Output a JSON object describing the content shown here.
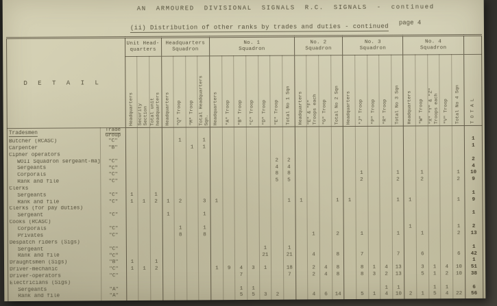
{
  "page": {
    "background": "#35332e",
    "paper_color": "#cdc9ac",
    "ink_color": "#55503c"
  },
  "title": "AN  ARMOURED  DIVISIONAL  SIGNALS  R.C. SIGNALS - continued",
  "subtitle": "(ii) Distribution of other ranks by trades and duties - continued",
  "page_number": "page 4",
  "detail_header": "D E T A I L",
  "body_headers": {
    "tradesmen": "Tradesmen",
    "trade_group": "Trade Group"
  },
  "total_column_label": "T O T A L",
  "groups": [
    {
      "label": "Unit Head-\nquarters",
      "cols": [
        "Headquarters",
        "Security\nSection",
        "Total unit\nheadquarters"
      ]
    },
    {
      "label": "Headquarters\nSquadron",
      "cols": [
        "Headquarters",
        "\"Q\" Troop",
        "\"M\" Troop",
        "Total Headquarters\nSqn."
      ]
    },
    {
      "label": "No. 1\nSquadron",
      "cols": [
        "Headquarters",
        "\"A\" Troop",
        "\"B\" Troop",
        "\"C\" Troop",
        "\"D\" Troop",
        "\"E\" Troop",
        "Total No 1 Sqn"
      ]
    },
    {
      "label": "No. 2\nSquadron",
      "cols": [
        "Headquarters",
        "\"E\" & \"F\"\nTroops each",
        "\"G\" Troop",
        "Total No 2 Sqn"
      ]
    },
    {
      "label": "No. 3\nSquadron",
      "cols": [
        "Headquarters",
        "\"J\" Troop",
        "\"P\" Troop",
        "\"R\" Troop",
        "Total No 3 Sqn"
      ]
    },
    {
      "label": "No. 4\nSquadron",
      "cols": [
        "Headquarters",
        "\"W\" Troop",
        "\"X\" \"Y\" & \"Z\"\nTroops each",
        "\"V\" Troop",
        "Total No 4 Sqn"
      ]
    }
  ],
  "rows": [
    {
      "label": "Tradesmen",
      "indent": 0,
      "section": true,
      "trade_header": true,
      "trade": "",
      "cells": {}
    },
    {
      "label": "Butcher (RCASC)",
      "indent": 0,
      "trade": "\"C\"",
      "cells": {
        "5": "1",
        "7": "1",
        "29": "1"
      }
    },
    {
      "label": "Carpenter",
      "indent": 0,
      "trade": "\"B\"",
      "cells": {
        "6": "1",
        "7": "1",
        "29": "1"
      }
    },
    {
      "label": "Cipher operators",
      "indent": 0,
      "section": true,
      "trade": "",
      "cells": {}
    },
    {
      "label": "WOII Squadron sergeant-major",
      "indent": 1,
      "trade": "\"C\"",
      "cells": {
        "13": "2",
        "14": "2",
        "29": "2"
      }
    },
    {
      "label": "Sergeants",
      "indent": 1,
      "trade": "\"C\"",
      "cells": {
        "13": "4",
        "14": "4",
        "29": "4"
      }
    },
    {
      "label": "Corporals",
      "indent": 1,
      "trade": "\"C\"",
      "cells": {
        "13": "8",
        "14": "8",
        "20": "1",
        "23": "1",
        "25": "1",
        "28": "1",
        "29": "10"
      }
    },
    {
      "label": "Rank and file",
      "indent": 1,
      "trade": "\"C\"",
      "cells": {
        "13": "5",
        "14": "5",
        "20": "2",
        "23": "2",
        "25": "2",
        "28": "2",
        "29": "9"
      }
    },
    {
      "label": "Clerks",
      "indent": 0,
      "section": true,
      "trade": "",
      "cells": {}
    },
    {
      "label": "Sergeants",
      "indent": 1,
      "trade": "\"C\"",
      "cells": {
        "1": "1",
        "3": "1",
        "29": "1"
      }
    },
    {
      "label": "Rank and file",
      "indent": 1,
      "trade": "\"C\"",
      "cells": {
        "1": "1",
        "2": "1",
        "3": "2",
        "4": "1",
        "5": "2",
        "7": "3",
        "8": "1",
        "14": "1",
        "15": "1",
        "18": "1",
        "19": "1",
        "23": "1",
        "24": "1",
        "28": "1",
        "29": "9"
      }
    },
    {
      "label": "Clerks (for pay duties)",
      "indent": 0,
      "section": true,
      "trade": "",
      "cells": {}
    },
    {
      "label": "Sergeant",
      "indent": 1,
      "trade": "\"C\"",
      "cells": {
        "4": "1",
        "7": "1",
        "29": "1"
      }
    },
    {
      "label": "Cooks (RCASC)",
      "indent": 0,
      "section": true,
      "trade": "",
      "cells": {}
    },
    {
      "label": "Corporals",
      "indent": 1,
      "trade": "\"C\"",
      "cells": {
        "5": "1",
        "7": "1",
        "24": "1",
        "28": "1",
        "29": "2"
      }
    },
    {
      "label": "Privates",
      "indent": 1,
      "trade": "\"C\"",
      "cells": {
        "5": "8",
        "7": "8",
        "16": "1",
        "18": "2",
        "20": "1",
        "23": "1",
        "25": "1",
        "28": "2",
        "29": "13"
      }
    },
    {
      "label": "Despatch riders (Sigs)",
      "indent": 0,
      "section": true,
      "trade": "",
      "cells": {}
    },
    {
      "label": "Sergeant",
      "indent": 1,
      "trade": "\"C\"",
      "cells": {
        "12": "1",
        "14": "1",
        "29": "1"
      }
    },
    {
      "label": "Rank and file",
      "indent": 1,
      "trade": "\"C\"",
      "cells": {
        "12": "21",
        "14": "21",
        "16": "4",
        "18": "8",
        "20": "7",
        "23": "7",
        "25": "6",
        "28": "6",
        "29": "42"
      }
    },
    {
      "label": "Draughtsmen (Sigs)",
      "indent": 0,
      "trade": "\"B\"",
      "cells": {
        "1": "1",
        "3": "1",
        "29": "1"
      }
    },
    {
      "label": "Driver-mechanic",
      "indent": 0,
      "trade": "\"C\"",
      "cells": {
        "1": "1",
        "2": "1",
        "3": "2",
        "8": "1",
        "9": "9",
        "10": "4",
        "11": "3",
        "12": "1",
        "14": "18",
        "16": "2",
        "17": "4",
        "18": "8",
        "20": "8",
        "21": "1",
        "22": "4",
        "23": "13",
        "25": "3",
        "26": "1",
        "27": "4",
        "28": "10",
        "29": "51"
      }
    },
    {
      "label": "Driver-operators",
      "indent": 0,
      "trade": "\"C\"",
      "cells": {
        "10": "7",
        "14": "7",
        "16": "2",
        "17": "4",
        "18": "8",
        "20": "8",
        "21": "3",
        "22": "2",
        "23": "13",
        "25": "5",
        "26": "1",
        "27": "2",
        "28": "10",
        "29": "38"
      }
    },
    {
      "label": "Electricians (Sigs)",
      "indent": 0,
      "section": true,
      "trade": "",
      "cells": {}
    },
    {
      "label": "Sergeants",
      "indent": 1,
      "trade": "\"A\"",
      "cells": {
        "10": "1",
        "11": "1",
        "22": "1",
        "23": "1",
        "26": "1",
        "27": "1",
        "29": "6"
      }
    },
    {
      "label": "Rank and file",
      "indent": 1,
      "trade": "\"A\"",
      "cells": {
        "10": "5",
        "11": "5",
        "12": "3",
        "13": "2",
        "16": "4",
        "17": "6",
        "18": "14",
        "20": "5",
        "21": "1",
        "22": "4",
        "23": "10",
        "24": "2",
        "25": "1",
        "26": "5",
        "27": "4",
        "28": "22",
        "29": "56"
      }
    }
  ]
}
